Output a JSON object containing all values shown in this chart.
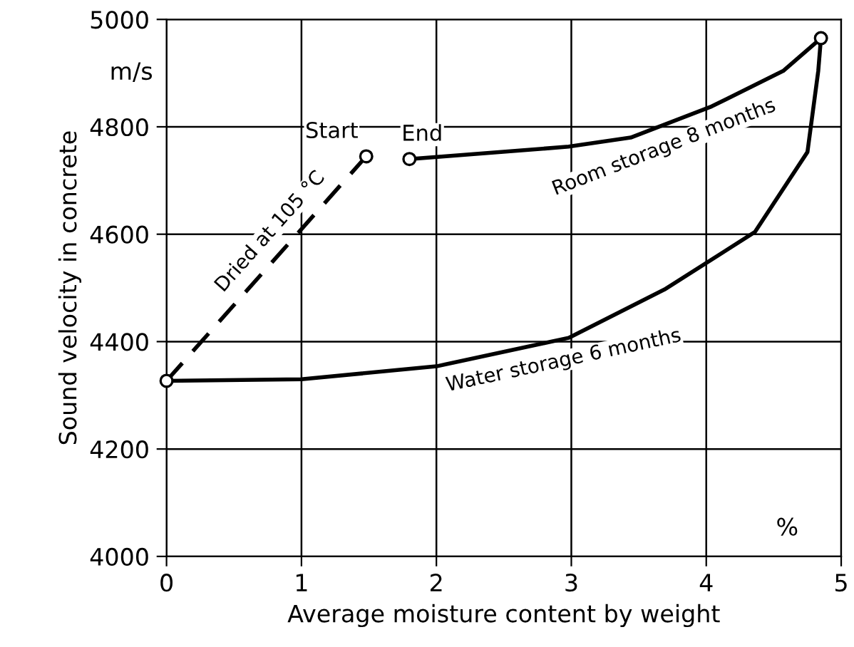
{
  "chart_data": {
    "type": "line",
    "xlabel": "Average moisture content by weight",
    "ylabel": "Sound velocity in concrete",
    "xlim": [
      0,
      5
    ],
    "xticks": [
      0,
      1,
      2,
      3,
      4,
      5
    ],
    "ylim": [
      4000,
      5000
    ],
    "yticks": [
      4000,
      4200,
      4400,
      4600,
      4800,
      5000
    ],
    "grid": true,
    "series": [
      {
        "name": "Dried at 105 °C",
        "color": "#000000",
        "line_style": "dashed",
        "x": [
          0,
          1.48
        ],
        "values": [
          4327,
          4745
        ]
      },
      {
        "name": "Room storage 8 months",
        "color": "#000000",
        "line_style": "solid",
        "x": [
          1.8,
          2.98,
          3.44,
          4.04,
          4.57,
          4.85
        ],
        "values": [
          4740,
          4763,
          4780,
          4838,
          4904,
          4965
        ]
      },
      {
        "name": "Water storage 6 months",
        "color": "#000000",
        "line_style": "solid",
        "x": [
          0,
          1.0,
          2.0,
          2.98,
          3.69,
          4.36,
          4.75,
          4.83,
          4.85
        ],
        "values": [
          4327,
          4330,
          4354,
          4407,
          4497,
          4604,
          4753,
          4904,
          4965
        ]
      },
      {
        "type": "scatter",
        "color": "#000000",
        "marker": "circle",
        "x": [
          0,
          1.48,
          1.8,
          4.85
        ],
        "values": [
          4327,
          4745,
          4740,
          4965
        ]
      }
    ],
    "annotations": [
      {
        "text": "Start",
        "x": 1.48,
        "y": 4745
      },
      {
        "text": "End",
        "x": 1.8,
        "y": 4740
      },
      "m/s",
      "%"
    ]
  }
}
